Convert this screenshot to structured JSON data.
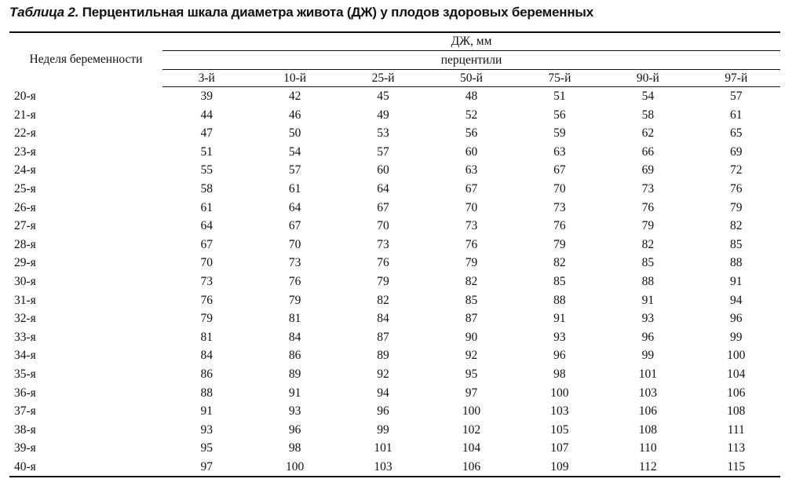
{
  "title": {
    "prefix": "Таблица 2.",
    "text": "Перцентильная шкала диаметра живота (ДЖ) у плодов здоровых беременных"
  },
  "header": {
    "week": "Неделя беременности",
    "unit": "ДЖ, мм",
    "percentiles_label": "перцентили",
    "percentiles": [
      "3-й",
      "10-й",
      "25-й",
      "50-й",
      "75-й",
      "90-й",
      "97-й"
    ]
  },
  "rows": [
    {
      "week": "20-я",
      "values": [
        "39",
        "42",
        "45",
        "48",
        "51",
        "54",
        "57"
      ]
    },
    {
      "week": "21-я",
      "values": [
        "44",
        "46",
        "49",
        "52",
        "56",
        "58",
        "61"
      ]
    },
    {
      "week": "22-я",
      "values": [
        "47",
        "50",
        "53",
        "56",
        "59",
        "62",
        "65"
      ]
    },
    {
      "week": "23-я",
      "values": [
        "51",
        "54",
        "57",
        "60",
        "63",
        "66",
        "69"
      ]
    },
    {
      "week": "24-я",
      "values": [
        "55",
        "57",
        "60",
        "63",
        "67",
        "69",
        "72"
      ]
    },
    {
      "week": "25-я",
      "values": [
        "58",
        "61",
        "64",
        "67",
        "70",
        "73",
        "76"
      ]
    },
    {
      "week": "26-я",
      "values": [
        "61",
        "64",
        "67",
        "70",
        "73",
        "76",
        "79"
      ]
    },
    {
      "week": "27-я",
      "values": [
        "64",
        "67",
        "70",
        "73",
        "76",
        "79",
        "82"
      ]
    },
    {
      "week": "28-я",
      "values": [
        "67",
        "70",
        "73",
        "76",
        "79",
        "82",
        "85"
      ]
    },
    {
      "week": "29-я",
      "values": [
        "70",
        "73",
        "76",
        "79",
        "82",
        "85",
        "88"
      ]
    },
    {
      "week": "30-я",
      "values": [
        "73",
        "76",
        "79",
        "82",
        "85",
        "88",
        "91"
      ]
    },
    {
      "week": "31-я",
      "values": [
        "76",
        "79",
        "82",
        "85",
        "88",
        "91",
        "94"
      ]
    },
    {
      "week": "32-я",
      "values": [
        "79",
        "81",
        "84",
        "87",
        "91",
        "93",
        "96"
      ]
    },
    {
      "week": "33-я",
      "values": [
        "81",
        "84",
        "87",
        "90",
        "93",
        "96",
        "99"
      ]
    },
    {
      "week": "34-я",
      "values": [
        "84",
        "86",
        "89",
        "92",
        "96",
        "99",
        "100"
      ]
    },
    {
      "week": "35-я",
      "values": [
        "86",
        "89",
        "92",
        "95",
        "98",
        "101",
        "104"
      ]
    },
    {
      "week": "36-я",
      "values": [
        "88",
        "91",
        "94",
        "97",
        "100",
        "103",
        "106"
      ]
    },
    {
      "week": "37-я",
      "values": [
        "91",
        "93",
        "96",
        "100",
        "103",
        "106",
        "108"
      ]
    },
    {
      "week": "38-я",
      "values": [
        "93",
        "96",
        "99",
        "102",
        "105",
        "108",
        "111"
      ]
    },
    {
      "week": "39-я",
      "values": [
        "95",
        "98",
        "101",
        "104",
        "107",
        "110",
        "113"
      ]
    },
    {
      "week": "40-я",
      "values": [
        "97",
        "100",
        "103",
        "106",
        "109",
        "112",
        "115"
      ]
    }
  ]
}
